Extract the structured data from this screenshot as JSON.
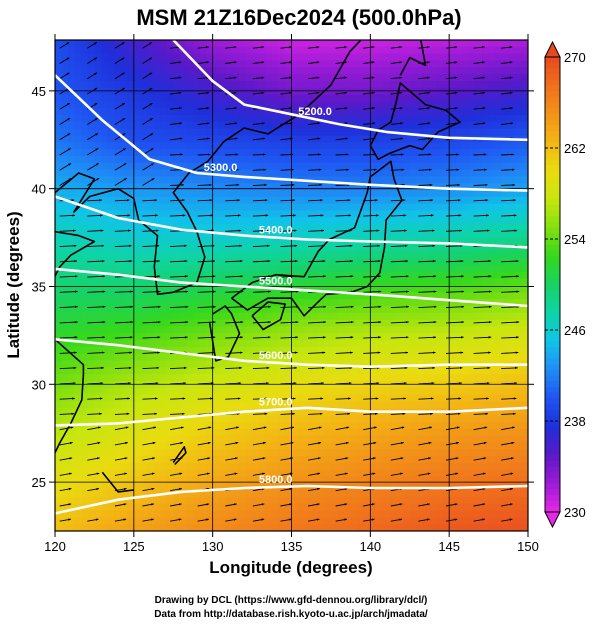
{
  "chart_data": {
    "type": "heatmap",
    "title": "MSM 21Z16Dec2024 (500.0hPa)",
    "xlabel": "Longitude (degrees)",
    "ylabel": "Latitude  (degrees)",
    "xlim": [
      120,
      150
    ],
    "ylim": [
      22.5,
      47.6
    ],
    "x_ticks": [
      "120",
      "125",
      "130",
      "135",
      "140",
      "145",
      "150"
    ],
    "x_tick_values": [
      120,
      125,
      130,
      135,
      140,
      145,
      150
    ],
    "y_ticks": [
      "25",
      "30",
      "35",
      "40",
      "45"
    ],
    "y_tick_values": [
      25,
      30,
      35,
      40,
      45
    ],
    "colorbar": {
      "min": 230,
      "max": 270,
      "ticks": [
        "230",
        "238",
        "246",
        "254",
        "262",
        "270"
      ],
      "tick_values": [
        230,
        238,
        246,
        254,
        262,
        270
      ],
      "colors": [
        "#e628e6",
        "#9b1bd6",
        "#5a19c8",
        "#1f2fd9",
        "#1f55f2",
        "#1f8cf5",
        "#10c4e8",
        "#0ed4a8",
        "#18d262",
        "#35d81c",
        "#84e00f",
        "#c8e60f",
        "#e9dc10",
        "#f3b614",
        "#f29219",
        "#f0701d",
        "#e84820"
      ]
    },
    "temperature_field": {
      "lon": [
        120,
        125,
        130,
        135,
        140,
        145,
        150
      ],
      "lat": [
        47.5,
        45,
        42.5,
        40,
        37.5,
        35,
        32.5,
        30,
        27.5,
        25,
        22.5
      ],
      "values": [
        [
          239.5,
          236,
          232.5,
          231,
          231,
          231.5,
          232
        ],
        [
          240,
          238,
          236,
          234,
          234,
          235,
          236
        ],
        [
          241.5,
          239.5,
          239,
          238.5,
          238.5,
          239,
          240
        ],
        [
          244,
          243,
          242.5,
          242,
          242,
          242.5,
          243.5
        ],
        [
          247,
          246,
          246,
          246.5,
          247,
          247.5,
          248.5
        ],
        [
          249.5,
          249.5,
          250.5,
          251.5,
          252.5,
          253,
          254
        ],
        [
          252,
          253,
          254.5,
          256,
          257,
          257.5,
          258.5
        ],
        [
          254.5,
          256.5,
          258,
          259.5,
          260.5,
          261,
          262
        ],
        [
          257,
          259,
          261,
          262.5,
          263.5,
          264.5,
          265
        ],
        [
          259.5,
          261.5,
          263.5,
          265,
          266,
          267,
          267.5
        ],
        [
          262,
          264,
          265.5,
          267,
          268,
          269,
          269.5
        ]
      ]
    },
    "height_contours": [
      {
        "label": "5200.0",
        "lon": [
          127.5,
          130,
          132,
          135,
          138,
          141,
          145,
          150
        ],
        "lat": [
          47.6,
          45.5,
          44.3,
          43.8,
          43.3,
          42.9,
          42.6,
          42.5
        ]
      },
      {
        "label": "5300.0",
        "lon": [
          120,
          123,
          126,
          129,
          132,
          136,
          140,
          145,
          150
        ],
        "lat": [
          45.8,
          43.5,
          41.5,
          40.8,
          40.6,
          40.4,
          40.2,
          40,
          39.9
        ]
      },
      {
        "label": "5400.0",
        "lon": [
          120,
          124,
          128,
          132,
          136,
          140,
          145,
          150
        ],
        "lat": [
          39.6,
          38.5,
          37.9,
          37.6,
          37.4,
          37.3,
          37.2,
          37
        ]
      },
      {
        "label": "5500.0",
        "lon": [
          120,
          124,
          128,
          132,
          136,
          140,
          145,
          150
        ],
        "lat": [
          35.9,
          35.6,
          35.2,
          35,
          34.8,
          34.6,
          34.3,
          34
        ]
      },
      {
        "label": "5600.0",
        "lon": [
          120,
          124,
          128,
          132,
          136,
          140,
          145,
          150
        ],
        "lat": [
          32.3,
          32,
          31.6,
          31.2,
          31,
          30.9,
          31,
          31
        ]
      },
      {
        "label": "5700.0",
        "lon": [
          120,
          124,
          128,
          132,
          136,
          140,
          145,
          150
        ],
        "lat": [
          27.9,
          28,
          28.3,
          28.6,
          28.8,
          28.6,
          28.6,
          28.8
        ]
      },
      {
        "label": "5800.0",
        "lon": [
          120,
          124,
          128,
          132,
          136,
          140,
          145,
          150
        ],
        "lat": [
          23.4,
          24.1,
          24.5,
          24.7,
          24.8,
          24.7,
          24.7,
          24.8
        ]
      }
    ],
    "wind_vectors": "uniform eastward flow, denser and stronger near jet (lat 30-38)",
    "grid": true
  },
  "credits": {
    "line1": "Drawing by DCL (https://www.gfd-dennou.org/library/dcl/)",
    "line2": "Data from http://database.rish.kyoto-u.ac.jp/arch/jmadata/"
  }
}
